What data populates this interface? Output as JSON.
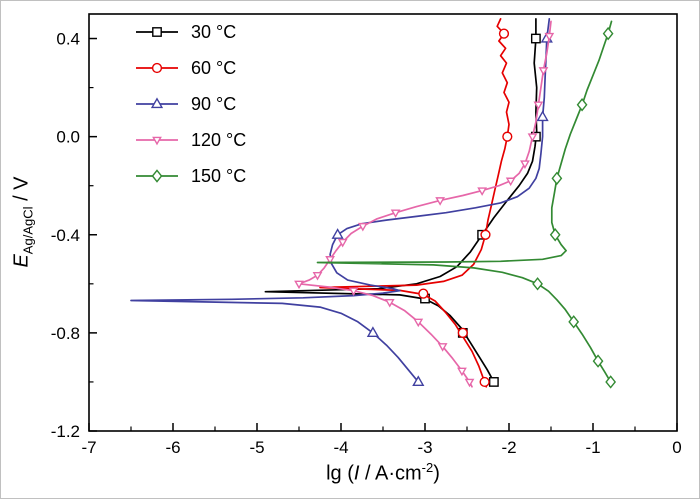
{
  "figure": {
    "background": "#ffffff",
    "frame_color": "#000000"
  },
  "chart_data": {
    "type": "line",
    "title": "",
    "xlabel": "lg (I / A·cm-2)",
    "ylabel": "E Ag/AgCl / V",
    "xlabel_parts": {
      "prefix": "lg (",
      "var": "I",
      "mid": " / A·cm",
      "sup": "-2",
      "suffix": ")"
    },
    "ylabel_parts": {
      "var": "E",
      "sub": "Ag/AgCl",
      "rest": " / V"
    },
    "xlim": [
      -7,
      0
    ],
    "ylim": [
      -1.2,
      0.5
    ],
    "x_ticks": [
      -7,
      -6,
      -5,
      -4,
      -3,
      -2,
      -1,
      0
    ],
    "x_tick_labels": [
      "-7",
      "-6",
      "-5",
      "-4",
      "-3",
      "-2",
      "-1",
      "0"
    ],
    "y_ticks": [
      -1.2,
      -0.8,
      -0.4,
      0.0,
      0.4
    ],
    "y_tick_labels": [
      "-1.2",
      "-0.8",
      "-0.4",
      "0.0",
      "0.4"
    ],
    "x_minor_step": 0.5,
    "y_minor_step": 0.2,
    "grid": false,
    "legend_position": "top-left",
    "series": [
      {
        "name": "30 °C",
        "color": "#000000",
        "marker": "square",
        "marker_scale": 1,
        "ecorr_V": -0.63,
        "line": [
          [
            -1.68,
            0.48
          ],
          [
            -1.68,
            0.4
          ],
          [
            -1.7,
            0.3
          ],
          [
            -1.67,
            0.2
          ],
          [
            -1.68,
            0.1
          ],
          [
            -1.67,
            0.02
          ],
          [
            -1.69,
            -0.04
          ],
          [
            -1.72,
            -0.1
          ],
          [
            -1.78,
            -0.15
          ],
          [
            -1.88,
            -0.2
          ],
          [
            -2.02,
            -0.26
          ],
          [
            -2.18,
            -0.33
          ],
          [
            -2.32,
            -0.4
          ],
          [
            -2.46,
            -0.47
          ],
          [
            -2.62,
            -0.53
          ],
          [
            -2.82,
            -0.57
          ],
          [
            -3.1,
            -0.6
          ],
          [
            -3.55,
            -0.62
          ],
          [
            -4.9,
            -0.632
          ],
          [
            -3.3,
            -0.645
          ],
          [
            -3.0,
            -0.662
          ],
          [
            -2.84,
            -0.69
          ],
          [
            -2.7,
            -0.73
          ],
          [
            -2.57,
            -0.78
          ],
          [
            -2.46,
            -0.84
          ],
          [
            -2.35,
            -0.9
          ],
          [
            -2.26,
            -0.95
          ],
          [
            -2.18,
            -1.0
          ]
        ],
        "markers": [
          [
            -1.68,
            0.4
          ],
          [
            -1.68,
            0.0
          ],
          [
            -2.32,
            -0.4
          ],
          [
            -3.0,
            -0.66
          ],
          [
            -2.55,
            -0.8
          ],
          [
            -2.18,
            -1.0
          ]
        ]
      },
      {
        "name": "60 °C",
        "color": "#e60000",
        "marker": "circle",
        "marker_scale": 1,
        "ecorr_V": -0.615,
        "line": [
          [
            -2.1,
            0.48
          ],
          [
            -2.14,
            0.45
          ],
          [
            -2.06,
            0.42
          ],
          [
            -2.12,
            0.39
          ],
          [
            -2.04,
            0.36
          ],
          [
            -2.1,
            0.33
          ],
          [
            -2.03,
            0.3
          ],
          [
            -2.08,
            0.26
          ],
          [
            -2.02,
            0.22
          ],
          [
            -2.06,
            0.18
          ],
          [
            -2.0,
            0.14
          ],
          [
            -2.03,
            0.1
          ],
          [
            -2.0,
            0.05
          ],
          [
            -2.02,
            0.0
          ],
          [
            -2.05,
            -0.05
          ],
          [
            -2.09,
            -0.1
          ],
          [
            -2.13,
            -0.16
          ],
          [
            -2.17,
            -0.22
          ],
          [
            -2.21,
            -0.28
          ],
          [
            -2.25,
            -0.34
          ],
          [
            -2.28,
            -0.4
          ],
          [
            -2.33,
            -0.46
          ],
          [
            -2.42,
            -0.52
          ],
          [
            -2.56,
            -0.565
          ],
          [
            -2.78,
            -0.59
          ],
          [
            -3.1,
            -0.605
          ],
          [
            -4.25,
            -0.615
          ],
          [
            -3.3,
            -0.627
          ],
          [
            -3.02,
            -0.643
          ],
          [
            -2.88,
            -0.67
          ],
          [
            -2.76,
            -0.715
          ],
          [
            -2.64,
            -0.765
          ],
          [
            -2.55,
            -0.815
          ],
          [
            -2.44,
            -0.875
          ],
          [
            -2.36,
            -0.935
          ],
          [
            -2.29,
            -1.0
          ],
          [
            -2.27,
            -1.02
          ]
        ],
        "markers": [
          [
            -2.06,
            0.42
          ],
          [
            -2.02,
            0.0
          ],
          [
            -2.28,
            -0.4
          ],
          [
            -3.02,
            -0.64
          ],
          [
            -2.55,
            -0.8
          ],
          [
            -2.29,
            -1.0
          ]
        ]
      },
      {
        "name": "90 °C",
        "color": "#4040a0",
        "marker": "triangle-up",
        "marker_scale": 1,
        "ecorr_V": -0.668,
        "line": [
          [
            -1.52,
            0.48
          ],
          [
            -1.55,
            0.4
          ],
          [
            -1.56,
            0.32
          ],
          [
            -1.57,
            0.24
          ],
          [
            -1.58,
            0.16
          ],
          [
            -1.6,
            0.08
          ],
          [
            -1.6,
            0.0
          ],
          [
            -1.62,
            -0.07
          ],
          [
            -1.64,
            -0.13
          ],
          [
            -1.68,
            -0.17
          ],
          [
            -1.76,
            -0.21
          ],
          [
            -1.9,
            -0.245
          ],
          [
            -2.1,
            -0.27
          ],
          [
            -2.4,
            -0.29
          ],
          [
            -2.75,
            -0.31
          ],
          [
            -3.1,
            -0.325
          ],
          [
            -3.45,
            -0.34
          ],
          [
            -3.75,
            -0.355
          ],
          [
            -3.93,
            -0.375
          ],
          [
            -4.04,
            -0.4
          ],
          [
            -4.1,
            -0.44
          ],
          [
            -4.13,
            -0.48
          ],
          [
            -4.11,
            -0.52
          ],
          [
            -4.05,
            -0.555
          ],
          [
            -3.92,
            -0.585
          ],
          [
            -3.65,
            -0.605
          ],
          [
            -3.38,
            -0.62
          ],
          [
            -3.3,
            -0.628
          ],
          [
            -3.5,
            -0.638
          ],
          [
            -3.85,
            -0.648
          ],
          [
            -4.45,
            -0.657
          ],
          [
            -5.3,
            -0.663
          ],
          [
            -6.5,
            -0.668
          ],
          [
            -4.7,
            -0.68
          ],
          [
            -4.25,
            -0.695
          ],
          [
            -4.0,
            -0.72
          ],
          [
            -3.8,
            -0.755
          ],
          [
            -3.62,
            -0.8
          ],
          [
            -3.46,
            -0.85
          ],
          [
            -3.32,
            -0.9
          ],
          [
            -3.2,
            -0.95
          ],
          [
            -3.08,
            -1.0
          ]
        ],
        "markers": [
          [
            -1.55,
            0.4
          ],
          [
            -1.6,
            0.08
          ],
          [
            -4.04,
            -0.4
          ],
          [
            -3.62,
            -0.8
          ],
          [
            -3.08,
            -1.0
          ]
        ]
      },
      {
        "name": "120 °C",
        "color": "#e667a9",
        "marker": "triangle-down",
        "marker_scale": 0.75,
        "ecorr_V": -0.6,
        "line": [
          [
            -1.5,
            0.47
          ],
          [
            -1.52,
            0.41
          ],
          [
            -1.55,
            0.34
          ],
          [
            -1.59,
            0.27
          ],
          [
            -1.62,
            0.2
          ],
          [
            -1.65,
            0.13
          ],
          [
            -1.68,
            0.06
          ],
          [
            -1.72,
            0.0
          ],
          [
            -1.76,
            -0.06
          ],
          [
            -1.81,
            -0.11
          ],
          [
            -1.88,
            -0.15
          ],
          [
            -1.98,
            -0.18
          ],
          [
            -2.12,
            -0.2
          ],
          [
            -2.32,
            -0.22
          ],
          [
            -2.55,
            -0.24
          ],
          [
            -2.82,
            -0.26
          ],
          [
            -3.1,
            -0.285
          ],
          [
            -3.35,
            -0.31
          ],
          [
            -3.57,
            -0.335
          ],
          [
            -3.74,
            -0.365
          ],
          [
            -3.88,
            -0.395
          ],
          [
            -3.98,
            -0.43
          ],
          [
            -4.06,
            -0.465
          ],
          [
            -4.13,
            -0.5
          ],
          [
            -4.2,
            -0.535
          ],
          [
            -4.28,
            -0.565
          ],
          [
            -4.38,
            -0.585
          ],
          [
            -4.5,
            -0.6
          ],
          [
            -4.15,
            -0.613
          ],
          [
            -3.85,
            -0.628
          ],
          [
            -3.62,
            -0.648
          ],
          [
            -3.42,
            -0.675
          ],
          [
            -3.24,
            -0.71
          ],
          [
            -3.08,
            -0.755
          ],
          [
            -2.93,
            -0.805
          ],
          [
            -2.79,
            -0.855
          ],
          [
            -2.67,
            -0.905
          ],
          [
            -2.56,
            -0.955
          ],
          [
            -2.47,
            -1.0
          ],
          [
            -2.44,
            -1.02
          ]
        ],
        "markers": [
          [
            -1.52,
            0.41
          ],
          [
            -1.59,
            0.27
          ],
          [
            -1.65,
            0.13
          ],
          [
            -1.72,
            0.0
          ],
          [
            -1.81,
            -0.11
          ],
          [
            -1.98,
            -0.18
          ],
          [
            -2.32,
            -0.22
          ],
          [
            -2.82,
            -0.26
          ],
          [
            -3.35,
            -0.31
          ],
          [
            -3.74,
            -0.365
          ],
          [
            -3.98,
            -0.43
          ],
          [
            -4.13,
            -0.5
          ],
          [
            -4.28,
            -0.565
          ],
          [
            -4.5,
            -0.6
          ],
          [
            -3.85,
            -0.628
          ],
          [
            -3.42,
            -0.675
          ],
          [
            -3.08,
            -0.755
          ],
          [
            -2.79,
            -0.855
          ],
          [
            -2.56,
            -0.955
          ],
          [
            -2.47,
            -1.0
          ]
        ]
      },
      {
        "name": "150 °C",
        "color": "#338a33",
        "marker": "diamond",
        "marker_scale": 1,
        "ecorr_V": -0.51,
        "line": [
          [
            -0.78,
            0.47
          ],
          [
            -0.82,
            0.42
          ],
          [
            -0.87,
            0.37
          ],
          [
            -0.93,
            0.31
          ],
          [
            -1.0,
            0.25
          ],
          [
            -1.07,
            0.19
          ],
          [
            -1.13,
            0.13
          ],
          [
            -1.2,
            0.07
          ],
          [
            -1.27,
            0.01
          ],
          [
            -1.33,
            -0.05
          ],
          [
            -1.38,
            -0.11
          ],
          [
            -1.43,
            -0.17
          ],
          [
            -1.46,
            -0.23
          ],
          [
            -1.49,
            -0.29
          ],
          [
            -1.49,
            -0.35
          ],
          [
            -1.45,
            -0.4
          ],
          [
            -1.38,
            -0.44
          ],
          [
            -1.32,
            -0.465
          ],
          [
            -1.38,
            -0.485
          ],
          [
            -1.6,
            -0.5
          ],
          [
            -2.1,
            -0.508
          ],
          [
            -2.75,
            -0.511
          ],
          [
            -4.28,
            -0.513
          ],
          [
            -2.9,
            -0.523
          ],
          [
            -2.42,
            -0.535
          ],
          [
            -2.08,
            -0.553
          ],
          [
            -1.84,
            -0.575
          ],
          [
            -1.66,
            -0.6
          ],
          [
            -1.53,
            -0.63
          ],
          [
            -1.43,
            -0.665
          ],
          [
            -1.33,
            -0.705
          ],
          [
            -1.23,
            -0.755
          ],
          [
            -1.13,
            -0.805
          ],
          [
            -1.03,
            -0.86
          ],
          [
            -0.94,
            -0.915
          ],
          [
            -0.86,
            -0.96
          ],
          [
            -0.79,
            -1.0
          ]
        ],
        "markers": [
          [
            -0.82,
            0.42
          ],
          [
            -1.13,
            0.13
          ],
          [
            -1.43,
            -0.17
          ],
          [
            -1.45,
            -0.4
          ],
          [
            -1.66,
            -0.6
          ],
          [
            -1.23,
            -0.755
          ],
          [
            -0.94,
            -0.915
          ],
          [
            -0.79,
            -1.0
          ]
        ]
      }
    ]
  }
}
